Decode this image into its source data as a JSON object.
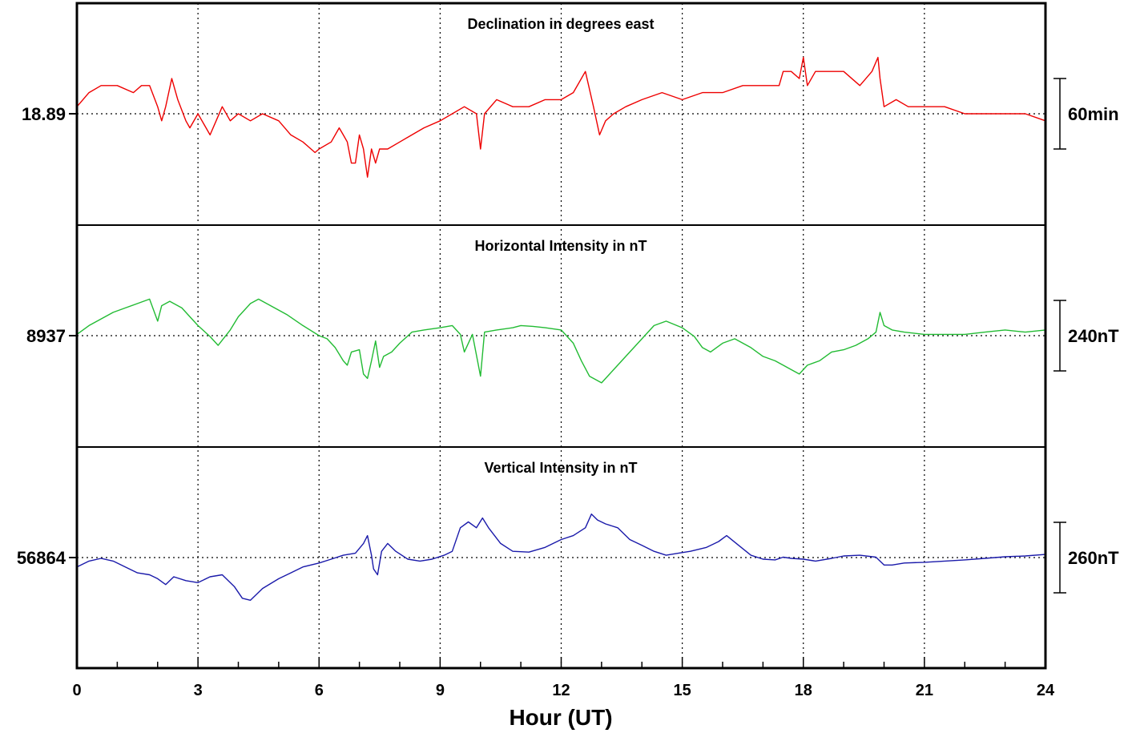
{
  "chart_data": {
    "type": "line",
    "xlabel": "Hour (UT)",
    "xlim": [
      0,
      24
    ],
    "xticks": [
      0,
      3,
      6,
      9,
      12,
      15,
      18,
      21,
      24
    ],
    "grid": true,
    "panels": [
      {
        "title": "Declination in degrees east",
        "baseline_label": "18.89",
        "baseline_value": 18.89,
        "scale_label": "60min",
        "color": "#ee0000",
        "series": {
          "x": [
            0,
            0.3,
            0.6,
            1.0,
            1.4,
            1.6,
            1.8,
            2.0,
            2.1,
            2.2,
            2.35,
            2.5,
            2.7,
            2.8,
            3.0,
            3.3,
            3.45,
            3.6,
            3.8,
            4.0,
            4.3,
            4.6,
            5.0,
            5.3,
            5.6,
            5.8,
            5.9,
            6.0,
            6.3,
            6.5,
            6.6,
            6.7,
            6.8,
            6.9,
            7.0,
            7.1,
            7.2,
            7.3,
            7.4,
            7.5,
            7.7,
            8.0,
            8.3,
            8.6,
            9.0,
            9.3,
            9.6,
            9.9,
            10.0,
            10.1,
            10.4,
            10.8,
            11.2,
            11.6,
            12.0,
            12.3,
            12.5,
            12.6,
            12.8,
            12.95,
            13.1,
            13.3,
            13.6,
            14.0,
            14.5,
            15.0,
            15.5,
            16.0,
            16.5,
            17.0,
            17.4,
            17.5,
            17.7,
            17.9,
            18.0,
            18.1,
            18.3,
            18.6,
            19.0,
            19.4,
            19.7,
            19.85,
            19.9,
            20.0,
            20.3,
            20.6,
            21.0,
            21.5,
            22.0,
            22.5,
            23.0,
            23.5,
            24.0
          ],
          "y": [
            18.9,
            18.92,
            18.93,
            18.93,
            18.92,
            18.93,
            18.93,
            18.9,
            18.88,
            18.9,
            18.94,
            18.91,
            18.88,
            18.87,
            18.89,
            18.86,
            18.88,
            18.9,
            18.88,
            18.89,
            18.88,
            18.89,
            18.88,
            18.86,
            18.85,
            18.84,
            18.835,
            18.84,
            18.85,
            18.87,
            18.86,
            18.85,
            18.82,
            18.82,
            18.86,
            18.84,
            18.8,
            18.84,
            18.82,
            18.84,
            18.84,
            18.85,
            18.86,
            18.87,
            18.88,
            18.89,
            18.9,
            18.89,
            18.84,
            18.89,
            18.91,
            18.9,
            18.9,
            18.91,
            18.91,
            18.92,
            18.94,
            18.95,
            18.9,
            18.86,
            18.88,
            18.89,
            18.9,
            18.91,
            18.92,
            18.91,
            18.92,
            18.92,
            18.93,
            18.93,
            18.93,
            18.95,
            18.95,
            18.94,
            18.97,
            18.93,
            18.95,
            18.95,
            18.95,
            18.93,
            18.95,
            18.97,
            18.94,
            18.9,
            18.91,
            18.9,
            18.9,
            18.9,
            18.89,
            18.89,
            18.89,
            18.89,
            18.88
          ]
        }
      },
      {
        "title": "Horizontal Intensity in nT",
        "baseline_label": "8937",
        "baseline_value": 8937,
        "scale_label": "240nT",
        "color": "#22bb33",
        "series": {
          "x": [
            0,
            0.3,
            0.6,
            0.9,
            1.2,
            1.5,
            1.8,
            2.0,
            2.1,
            2.3,
            2.6,
            2.8,
            3.0,
            3.3,
            3.5,
            3.8,
            4.0,
            4.3,
            4.5,
            4.8,
            5.2,
            5.6,
            6.0,
            6.2,
            6.4,
            6.6,
            6.7,
            6.8,
            7.0,
            7.1,
            7.2,
            7.3,
            7.4,
            7.5,
            7.6,
            7.8,
            8.0,
            8.3,
            8.6,
            9.0,
            9.3,
            9.5,
            9.6,
            9.8,
            10.0,
            10.1,
            10.4,
            10.8,
            11.0,
            11.3,
            11.6,
            12.0,
            12.3,
            12.5,
            12.7,
            13.0,
            13.3,
            13.6,
            14.0,
            14.3,
            14.6,
            15.0,
            15.3,
            15.5,
            15.7,
            16.0,
            16.3,
            16.7,
            17.0,
            17.3,
            17.5,
            17.7,
            17.9,
            18.1,
            18.4,
            18.7,
            19.0,
            19.3,
            19.6,
            19.8,
            19.9,
            20.0,
            20.2,
            20.5,
            21.0,
            21.5,
            22.0,
            22.5,
            23.0,
            23.5,
            24.0
          ],
          "y": [
            8940,
            8960,
            8975,
            8990,
            9000,
            9010,
            9020,
            8970,
            9005,
            9015,
            9000,
            8980,
            8960,
            8935,
            8915,
            8950,
            8980,
            9010,
            9020,
            9005,
            8985,
            8960,
            8937,
            8930,
            8910,
            8880,
            8870,
            8900,
            8905,
            8850,
            8840,
            8880,
            8925,
            8865,
            8890,
            8900,
            8920,
            8945,
            8950,
            8955,
            8960,
            8940,
            8900,
            8940,
            8845,
            8945,
            8950,
            8955,
            8960,
            8958,
            8955,
            8950,
            8920,
            8880,
            8845,
            8830,
            8860,
            8890,
            8930,
            8960,
            8970,
            8955,
            8935,
            8910,
            8900,
            8920,
            8930,
            8910,
            8890,
            8880,
            8870,
            8860,
            8850,
            8870,
            8880,
            8900,
            8905,
            8915,
            8930,
            8945,
            8990,
            8960,
            8950,
            8945,
            8940,
            8940,
            8940,
            8945,
            8950,
            8945,
            8950
          ]
        }
      },
      {
        "title": "Vertical Intensity in nT",
        "baseline_label": "56864",
        "baseline_value": 56864,
        "scale_label": "260nT",
        "color": "#1a1aaa",
        "series": {
          "x": [
            0,
            0.3,
            0.6,
            0.9,
            1.2,
            1.5,
            1.8,
            2.0,
            2.2,
            2.4,
            2.7,
            3.0,
            3.3,
            3.6,
            3.9,
            4.1,
            4.3,
            4.6,
            5.0,
            5.3,
            5.6,
            6.0,
            6.3,
            6.6,
            6.9,
            7.1,
            7.2,
            7.3,
            7.35,
            7.45,
            7.55,
            7.7,
            7.9,
            8.2,
            8.5,
            8.8,
            9.1,
            9.3,
            9.5,
            9.7,
            9.9,
            10.05,
            10.2,
            10.5,
            10.8,
            11.2,
            11.6,
            12.0,
            12.3,
            12.6,
            12.75,
            12.9,
            13.1,
            13.4,
            13.7,
            14.0,
            14.3,
            14.6,
            14.9,
            15.2,
            15.6,
            15.9,
            16.1,
            16.4,
            16.7,
            17.0,
            17.3,
            17.5,
            17.7,
            18.0,
            18.3,
            18.7,
            19.0,
            19.4,
            19.8,
            20.0,
            20.2,
            20.5,
            21.0,
            21.5,
            22.0,
            22.5,
            23.0,
            23.5,
            24.0
          ],
          "y": [
            56840,
            56855,
            56862,
            56855,
            56840,
            56825,
            56820,
            56810,
            56795,
            56815,
            56805,
            56800,
            56815,
            56820,
            56790,
            56760,
            56755,
            56785,
            56810,
            56825,
            56840,
            56850,
            56860,
            56870,
            56875,
            56900,
            56920,
            56870,
            56835,
            56820,
            56880,
            56900,
            56880,
            56860,
            56855,
            56860,
            56870,
            56880,
            56940,
            56955,
            56940,
            56965,
            56940,
            56900,
            56880,
            56878,
            56890,
            56910,
            56920,
            56940,
            56975,
            56960,
            56950,
            56940,
            56910,
            56895,
            56880,
            56870,
            56875,
            56880,
            56890,
            56905,
            56920,
            56895,
            56870,
            56860,
            56858,
            56865,
            56862,
            56860,
            56855,
            56862,
            56868,
            56870,
            56865,
            56845,
            56845,
            56850,
            56852,
            56855,
            56858,
            56862,
            56866,
            56868,
            56872
          ]
        }
      }
    ]
  }
}
